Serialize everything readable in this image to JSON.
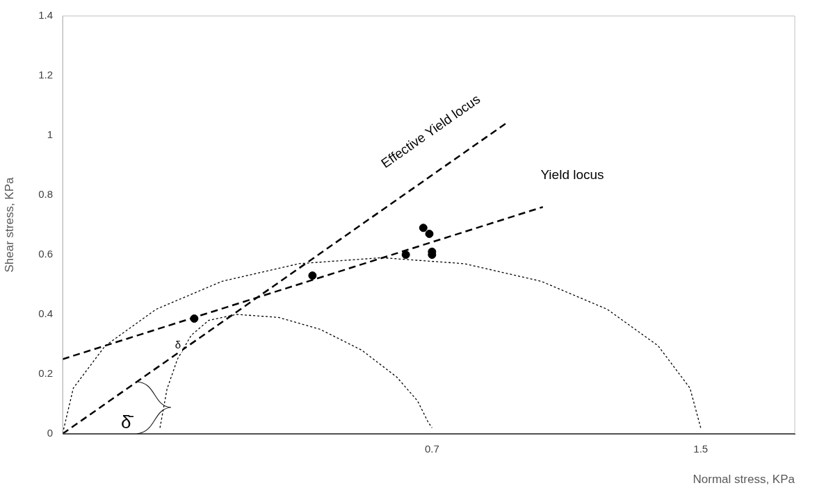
{
  "chart_data": {
    "type": "scatter",
    "xlabel": "Normal stress, KPa",
    "ylabel": "Shear stress, KPa",
    "xlim": [
      -0.4,
      1.78
    ],
    "xticks": [
      0.7,
      1.5
    ],
    "ylim": [
      0,
      1.4
    ],
    "yticks": [
      0,
      0.2,
      0.4,
      0.6,
      0.8,
      1,
      1.2,
      1.4
    ],
    "grid": false,
    "legend": false,
    "marker": "circle",
    "series": [
      {
        "type": "line",
        "color": "#000000",
        "line_style": "dashed",
        "marker": "none",
        "x": [
          -0.4,
          1.03
        ],
        "values": [
          0.25,
          0.76
        ]
      },
      {
        "type": "line",
        "color": "#000000",
        "line_style": "dashed",
        "marker": "none",
        "x": [
          -0.4,
          0.92
        ],
        "values": [
          0,
          1.04
        ]
      },
      {
        "type": "line",
        "color": "#000000",
        "line_style": "dotted",
        "marker": "none",
        "x": [
          1.5,
          1.468,
          1.373,
          1.222,
          1.025,
          0.796,
          0.55,
          0.304,
          0.075,
          -0.122,
          -0.273,
          -0.368,
          -0.4
        ],
        "values": [
          0.02,
          0.153,
          0.295,
          0.417,
          0.511,
          0.57,
          0.59,
          0.57,
          0.511,
          0.417,
          0.295,
          0.153,
          0
        ]
      },
      {
        "type": "line",
        "color": "#000000",
        "line_style": "dotted",
        "marker": "none",
        "x": [
          -0.11,
          -0.089,
          -0.058,
          -0.017,
          0.035,
          0.118,
          0.243,
          0.367,
          0.491,
          0.595,
          0.657,
          0.688,
          0.7
        ],
        "values": [
          0.02,
          0.15,
          0.25,
          0.33,
          0.38,
          0.4,
          0.39,
          0.35,
          0.28,
          0.19,
          0.11,
          0.04,
          0.02
        ]
      },
      {
        "color": "#000000",
        "x": [
          -0.008,
          0.344,
          0.622,
          0.674,
          0.692,
          0.7,
          0.7
        ],
        "values": [
          0.386,
          0.53,
          0.6,
          0.69,
          0.67,
          0.61,
          0.6
        ]
      }
    ],
    "annotations": [
      "Effective Yield locus",
      "Yield locus",
      "δ",
      {
        "text": "δ̄",
        "x": -0.178,
        "y": 0.175
      }
    ]
  }
}
